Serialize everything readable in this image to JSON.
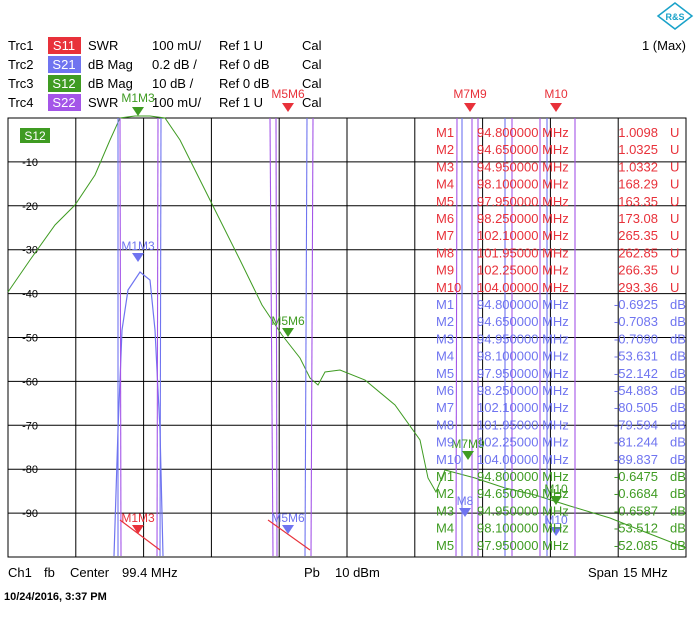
{
  "traces": [
    {
      "id": "Trc1",
      "param": "S11",
      "format": "SWR",
      "scale": "100 mU/",
      "ref": "Ref 1 U",
      "cal": "Cal",
      "color": "#e8313a"
    },
    {
      "id": "Trc2",
      "param": "S21",
      "format": "dB Mag",
      "scale": "0.2 dB /",
      "ref": "Ref 0 dB",
      "cal": "Cal",
      "color": "#6f74f0"
    },
    {
      "id": "Trc3",
      "param": "S12",
      "format": "dB Mag",
      "scale": "10 dB /",
      "ref": "Ref 0 dB",
      "cal": "Cal",
      "color": "#3f9b22"
    },
    {
      "id": "Trc4",
      "param": "S22",
      "format": "SWR",
      "scale": "100 mU/",
      "ref": "Ref 1 U",
      "cal": "Cal",
      "color": "#a455e8"
    }
  ],
  "max_label": "1 (Max)",
  "active_trace_badge": "S12",
  "colors": {
    "s11": "#e8313a",
    "s21": "#6f74f0",
    "s12": "#3f9b22",
    "s22": "#a455e8",
    "grid": "#000000"
  },
  "y_axis": {
    "ticks": [
      "-10",
      "-20",
      "-30",
      "-40",
      "-50",
      "-60",
      "-70",
      "-80",
      "-90"
    ]
  },
  "top_markers": [
    {
      "label": "M1M3",
      "trace": "s12"
    },
    {
      "label": "M5M6",
      "trace": "s11"
    },
    {
      "label": "M7M9",
      "trace": "s11"
    },
    {
      "label": "M10",
      "trace": "s11"
    }
  ],
  "trace_markers": [
    {
      "label": "M1M3",
      "trace": "s21"
    },
    {
      "label": "M5M6",
      "trace": "s12"
    },
    {
      "label": "M7M9",
      "trace": "s12"
    },
    {
      "label": "M10",
      "trace": "s12"
    },
    {
      "label": "M1M3",
      "trace": "s11"
    },
    {
      "label": "M5M6",
      "trace": "s21"
    },
    {
      "label": "M8",
      "trace": "s21"
    },
    {
      "label": "M10",
      "trace": "s21"
    }
  ],
  "marker_table": [
    {
      "m": "M1",
      "freq": "94.800000 MHz",
      "val": "1.0098",
      "unit": "U",
      "trace": "s11"
    },
    {
      "m": "M2",
      "freq": "94.650000 MHz",
      "val": "1.0325",
      "unit": "U",
      "trace": "s11"
    },
    {
      "m": "M3",
      "freq": "94.950000 MHz",
      "val": "1.0332",
      "unit": "U",
      "trace": "s11"
    },
    {
      "m": "M4",
      "freq": "98.100000 MHz",
      "val": "168.29",
      "unit": "U",
      "trace": "s11"
    },
    {
      "m": "M5",
      "freq": "97.950000 MHz",
      "val": "163.35",
      "unit": "U",
      "trace": "s11"
    },
    {
      "m": "M6",
      "freq": "98.250000 MHz",
      "val": "173.08",
      "unit": "U",
      "trace": "s11"
    },
    {
      "m": "M7",
      "freq": "102.10000 MHz",
      "val": "265.35",
      "unit": "U",
      "trace": "s11"
    },
    {
      "m": "M8",
      "freq": "101.95000 MHz",
      "val": "262.85",
      "unit": "U",
      "trace": "s11"
    },
    {
      "m": "M9",
      "freq": "102.25000 MHz",
      "val": "266.35",
      "unit": "U",
      "trace": "s11"
    },
    {
      "m": "M10",
      "freq": "104.00000 MHz",
      "val": "293.36",
      "unit": "U",
      "trace": "s11"
    },
    {
      "m": "M1",
      "freq": "94.800000 MHz",
      "val": "-0.6925",
      "unit": "dB",
      "trace": "s21"
    },
    {
      "m": "M2",
      "freq": "94.650000 MHz",
      "val": "-0.7083",
      "unit": "dB",
      "trace": "s21"
    },
    {
      "m": "M3",
      "freq": "94.950000 MHz",
      "val": "-0.7090",
      "unit": "dB",
      "trace": "s21"
    },
    {
      "m": "M4",
      "freq": "98.100000 MHz",
      "val": "-53.631",
      "unit": "dB",
      "trace": "s21"
    },
    {
      "m": "M5",
      "freq": "97.950000 MHz",
      "val": "-52.142",
      "unit": "dB",
      "trace": "s21"
    },
    {
      "m": "M6",
      "freq": "98.250000 MHz",
      "val": "-54.883",
      "unit": "dB",
      "trace": "s21"
    },
    {
      "m": "M7",
      "freq": "102.10000 MHz",
      "val": "-80.505",
      "unit": "dB",
      "trace": "s21"
    },
    {
      "m": "M8",
      "freq": "101.95000 MHz",
      "val": "-79.594",
      "unit": "dB",
      "trace": "s21"
    },
    {
      "m": "M9",
      "freq": "102.25000 MHz",
      "val": "-81.244",
      "unit": "dB",
      "trace": "s21"
    },
    {
      "m": "M10",
      "freq": "104.00000 MHz",
      "val": "-89.837",
      "unit": "dB",
      "trace": "s21"
    },
    {
      "m": "M1",
      "freq": "94.800000 MHz",
      "val": "-0.6475",
      "unit": "dB",
      "trace": "s12"
    },
    {
      "m": "M2",
      "freq": "94.650000 MHz",
      "val": "-0.6684",
      "unit": "dB",
      "trace": "s12"
    },
    {
      "m": "M3",
      "freq": "94.950000 MHz",
      "val": "-0.6587",
      "unit": "dB",
      "trace": "s12"
    },
    {
      "m": "M4",
      "freq": "98.100000 MHz",
      "val": "-53.512",
      "unit": "dB",
      "trace": "s12"
    },
    {
      "m": "M5",
      "freq": "97.950000 MHz",
      "val": "-52.085",
      "unit": "dB",
      "trace": "s12"
    }
  ],
  "footer": {
    "channel": "Ch1",
    "sweep": "fb",
    "center_label": "Center",
    "center_value": "99.4 MHz",
    "power_label": "Pb",
    "power_value": "10 dBm",
    "span_label": "Span",
    "span_value": "15 MHz"
  },
  "timestamp": "10/24/2016, 3:37 PM"
}
